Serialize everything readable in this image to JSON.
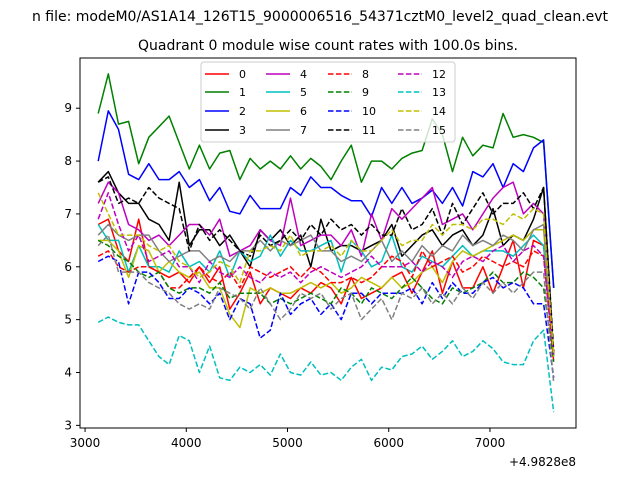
{
  "suptitle": "n file: modeM0/AS1A14_126T15_9000006516_54371cztM0_level2_quad_clean.evt",
  "chart_data": {
    "type": "line",
    "title": "Quadrant 0 module wise count rates with 100.0s bins.",
    "xlabel": "",
    "ylabel": "",
    "x_offset_label": "+4.9828e8",
    "xlim": [
      2950,
      7850
    ],
    "ylim": [
      2.95,
      9.95
    ],
    "x_ticks": [
      3000,
      4000,
      5000,
      6000,
      7000
    ],
    "x_tick_labels": [
      "3000",
      "4000",
      "5000",
      "6000",
      "7000"
    ],
    "y_ticks": [
      3,
      4,
      5,
      6,
      7,
      8,
      9
    ],
    "y_tick_labels": [
      "3",
      "4",
      "5",
      "6",
      "7",
      "8",
      "9"
    ],
    "grid": false,
    "legend_placement": "top-center",
    "legend_columns": 4,
    "x": [
      3130,
      3230,
      3330,
      3430,
      3530,
      3630,
      3730,
      3830,
      3930,
      4030,
      4130,
      4230,
      4330,
      4430,
      4530,
      4630,
      4730,
      4830,
      4930,
      5030,
      5130,
      5230,
      5330,
      5430,
      5530,
      5630,
      5730,
      5830,
      5930,
      6030,
      6130,
      6230,
      6330,
      6430,
      6530,
      6630,
      6730,
      6830,
      6930,
      7030,
      7130,
      7230,
      7330,
      7430,
      7530,
      7630
    ],
    "series": [
      {
        "name": "0",
        "color": "#ff0000",
        "dash": "solid",
        "values": [
          6.8,
          6.9,
          6.3,
          6.1,
          6.9,
          6.0,
          5.9,
          5.8,
          5.9,
          5.7,
          6.0,
          5.7,
          6.0,
          5.2,
          5.5,
          5.9,
          5.3,
          5.6,
          5.5,
          5.4,
          5.6,
          5.5,
          5.7,
          5.6,
          5.3,
          5.8,
          5.4,
          5.5,
          5.6,
          5.8,
          5.9,
          5.5,
          5.9,
          6.3,
          5.5,
          6.1,
          5.6,
          5.6,
          6.0,
          5.5,
          6.0,
          6.5,
          5.6,
          6.5,
          6.4,
          4.3
        ]
      },
      {
        "name": "1",
        "color": "#008000",
        "dash": "solid",
        "values": [
          8.9,
          9.65,
          8.7,
          8.75,
          7.95,
          8.45,
          8.65,
          8.85,
          8.35,
          7.85,
          8.3,
          7.85,
          8.15,
          8.2,
          7.65,
          8.05,
          7.85,
          8.0,
          7.85,
          8.1,
          7.85,
          8.05,
          7.9,
          7.65,
          8.0,
          8.3,
          7.6,
          8.0,
          8.0,
          7.85,
          8.05,
          8.15,
          8.2,
          8.8,
          8.5,
          7.8,
          8.45,
          8.1,
          8.3,
          8.25,
          8.9,
          8.45,
          8.5,
          8.45,
          8.35,
          5.6
        ]
      },
      {
        "name": "2",
        "color": "#0000ff",
        "dash": "solid",
        "values": [
          8.0,
          8.95,
          8.6,
          7.75,
          7.65,
          7.95,
          7.65,
          7.65,
          7.8,
          7.5,
          7.65,
          7.25,
          7.5,
          7.05,
          7.0,
          7.35,
          7.1,
          7.1,
          7.1,
          7.5,
          7.35,
          7.7,
          7.5,
          7.5,
          7.35,
          7.25,
          7.25,
          6.95,
          7.5,
          7.2,
          7.5,
          7.2,
          7.3,
          7.45,
          7.2,
          7.5,
          7.15,
          7.8,
          7.7,
          7.95,
          7.5,
          7.95,
          7.8,
          8.25,
          8.4,
          5.6
        ]
      },
      {
        "name": "3",
        "color": "#000000",
        "dash": "solid",
        "values": [
          7.6,
          7.8,
          7.4,
          7.2,
          7.2,
          6.9,
          6.8,
          6.5,
          7.6,
          6.4,
          6.7,
          6.7,
          6.4,
          6.6,
          6.3,
          6.0,
          6.7,
          6.5,
          6.7,
          6.4,
          6.6,
          6.0,
          6.9,
          6.3,
          6.4,
          6.4,
          6.3,
          6.4,
          6.5,
          6.8,
          6.2,
          6.4,
          6.6,
          6.7,
          6.4,
          6.6,
          6.7,
          6.4,
          6.6,
          7.1,
          6.4,
          6.6,
          6.5,
          6.9,
          7.5,
          4.3
        ]
      },
      {
        "name": "4",
        "color": "#bf00bf",
        "dash": "solid",
        "values": [
          7.2,
          7.6,
          7.4,
          6.8,
          6.7,
          6.5,
          6.6,
          6.4,
          6.6,
          6.8,
          6.8,
          6.6,
          6.9,
          6.2,
          6.3,
          6.4,
          6.7,
          6.5,
          6.4,
          7.3,
          6.4,
          6.5,
          6.6,
          6.6,
          6.4,
          6.7,
          6.2,
          7.0,
          6.5,
          7.1,
          6.9,
          7.1,
          7.3,
          7.5,
          6.8,
          6.9,
          7.0,
          6.7,
          7.0,
          7.3,
          7.5,
          7.6,
          7.0,
          7.2,
          7.0,
          4.3
        ]
      },
      {
        "name": "5",
        "color": "#00bfbf",
        "dash": "solid",
        "values": [
          6.8,
          6.5,
          6.5,
          5.9,
          6.4,
          6.0,
          6.0,
          5.9,
          6.3,
          6.0,
          6.1,
          5.9,
          6.3,
          5.8,
          6.3,
          6.1,
          6.2,
          6.6,
          6.2,
          6.5,
          6.3,
          6.3,
          6.4,
          6.5,
          5.9,
          6.5,
          6.3,
          6.0,
          6.1,
          6.6,
          6.0,
          5.9,
          6.2,
          6.1,
          6.0,
          6.2,
          6.4,
          6.2,
          6.3,
          6.3,
          6.3,
          6.2,
          6.4,
          6.6,
          6.4,
          4.3
        ]
      },
      {
        "name": "6",
        "color": "#bfbf00",
        "dash": "solid",
        "values": [
          6.5,
          6.5,
          6.3,
          5.8,
          6.4,
          6.3,
          5.9,
          6.1,
          5.9,
          5.8,
          5.9,
          5.6,
          5.6,
          5.1,
          4.85,
          5.6,
          5.5,
          5.6,
          5.5,
          5.5,
          5.6,
          5.7,
          5.6,
          5.7,
          5.5,
          5.6,
          5.8,
          5.7,
          5.6,
          5.8,
          5.6,
          5.7,
          5.9,
          6.0,
          5.7,
          6.1,
          6.3,
          6.2,
          6.3,
          6.4,
          6.5,
          6.6,
          6.5,
          6.7,
          6.7,
          4.3
        ]
      },
      {
        "name": "7",
        "color": "#808080",
        "dash": "solid",
        "values": [
          6.6,
          6.8,
          6.6,
          6.5,
          6.6,
          6.6,
          6.3,
          6.1,
          6.2,
          6.3,
          6.3,
          6.1,
          6.2,
          6.1,
          6.3,
          6.3,
          6.5,
          6.3,
          6.5,
          6.4,
          6.5,
          6.6,
          6.3,
          6.3,
          6.1,
          6.2,
          6.1,
          6.3,
          6.5,
          6.1,
          6.3,
          6.1,
          6.4,
          6.2,
          6.4,
          6.3,
          6.6,
          6.4,
          6.5,
          6.4,
          6.6,
          6.5,
          6.3,
          6.7,
          6.8,
          4.3
        ]
      },
      {
        "name": "8",
        "color": "#ff0000",
        "dash": "dashed",
        "values": [
          6.2,
          6.3,
          6.0,
          5.9,
          6.0,
          6.0,
          5.9,
          5.6,
          5.6,
          5.8,
          6.0,
          5.8,
          5.7,
          5.9,
          5.6,
          6.0,
          5.9,
          5.8,
          5.9,
          6.0,
          5.8,
          6.0,
          5.9,
          5.7,
          5.7,
          5.8,
          5.7,
          5.8,
          6.0,
          6.2,
          6.1,
          5.8,
          6.3,
          6.0,
          6.1,
          6.2,
          5.9,
          6.0,
          6.2,
          6.1,
          6.0,
          6.1,
          6.0,
          6.3,
          6.2,
          4.2
        ]
      },
      {
        "name": "9",
        "color": "#008000",
        "dash": "dashed",
        "values": [
          6.5,
          6.4,
          6.2,
          6.1,
          5.9,
          5.8,
          5.9,
          5.6,
          5.5,
          5.6,
          5.6,
          5.5,
          5.7,
          5.4,
          5.5,
          5.5,
          5.5,
          5.3,
          5.4,
          5.3,
          5.4,
          5.5,
          5.4,
          5.3,
          5.6,
          5.5,
          5.3,
          5.6,
          5.5,
          5.4,
          5.6,
          5.8,
          5.6,
          5.4,
          5.3,
          5.6,
          5.5,
          5.6,
          5.7,
          5.9,
          5.7,
          5.7,
          5.9,
          5.8,
          5.6,
          4.2
        ]
      },
      {
        "name": "10",
        "color": "#0000ff",
        "dash": "dashed",
        "values": [
          6.1,
          6.2,
          6.1,
          5.3,
          5.9,
          5.9,
          5.7,
          5.4,
          5.4,
          5.6,
          5.5,
          5.3,
          5.5,
          5.0,
          5.4,
          5.3,
          4.65,
          4.8,
          5.5,
          5.1,
          5.3,
          5.4,
          5.1,
          5.3,
          5.0,
          5.5,
          5.5,
          5.3,
          5.5,
          5.5,
          5.5,
          5.6,
          5.3,
          5.7,
          5.4,
          5.7,
          5.5,
          5.5,
          5.7,
          5.8,
          5.6,
          5.7,
          5.6,
          5.3,
          5.3,
          3.9
        ]
      },
      {
        "name": "11",
        "color": "#000000",
        "dash": "dashed",
        "values": [
          7.6,
          7.7,
          7.2,
          7.3,
          7.2,
          7.5,
          7.3,
          7.2,
          7.1,
          6.3,
          6.8,
          6.5,
          6.7,
          6.5,
          6.3,
          6.2,
          6.6,
          6.4,
          6.5,
          6.7,
          6.5,
          6.8,
          6.6,
          6.9,
          6.7,
          6.8,
          6.6,
          6.8,
          6.6,
          6.6,
          7.1,
          6.7,
          6.8,
          7.1,
          6.6,
          7.2,
          6.8,
          7.1,
          7.4,
          7.0,
          7.2,
          7.2,
          7.4,
          7.1,
          7.5,
          4.4
        ]
      },
      {
        "name": "12",
        "color": "#bf00bf",
        "dash": "dashed",
        "values": [
          6.9,
          7.4,
          6.8,
          6.3,
          6.6,
          6.1,
          6.2,
          6.3,
          6.0,
          6.0,
          5.7,
          6.1,
          5.9,
          5.8,
          6.0,
          5.8,
          5.7,
          5.9,
          5.8,
          5.9,
          5.7,
          5.9,
          6.0,
          5.9,
          5.8,
          5.9,
          6.0,
          6.2,
          6.0,
          6.0,
          6.0,
          6.1,
          5.9,
          6.1,
          6.0,
          5.8,
          6.1,
          6.2,
          6.1,
          6.3,
          6.4,
          6.1,
          6.3,
          6.4,
          6.2,
          4.3
        ]
      },
      {
        "name": "13",
        "color": "#00bfbf",
        "dash": "dashed",
        "values": [
          4.95,
          5.05,
          4.95,
          4.9,
          4.9,
          4.6,
          4.3,
          4.15,
          4.7,
          4.6,
          4.0,
          4.5,
          3.9,
          3.85,
          4.1,
          4.0,
          4.15,
          3.95,
          4.35,
          4.0,
          3.95,
          4.2,
          3.95,
          4.0,
          3.85,
          4.1,
          4.25,
          3.85,
          4.1,
          4.05,
          4.3,
          4.35,
          4.5,
          4.25,
          4.4,
          4.6,
          4.3,
          4.4,
          4.6,
          4.45,
          4.2,
          4.15,
          4.15,
          4.6,
          4.8,
          3.25
        ]
      },
      {
        "name": "14",
        "color": "#bfbf00",
        "dash": "dashed",
        "values": [
          7.4,
          7.0,
          6.6,
          6.6,
          6.6,
          6.4,
          6.3,
          6.4,
          6.1,
          6.0,
          5.8,
          5.9,
          6.1,
          6.0,
          5.7,
          6.3,
          6.3,
          6.4,
          6.3,
          6.6,
          6.2,
          6.3,
          6.3,
          6.4,
          6.2,
          6.5,
          6.3,
          6.3,
          6.5,
          6.7,
          6.4,
          6.5,
          6.5,
          6.8,
          6.6,
          6.8,
          6.8,
          6.7,
          6.9,
          6.9,
          6.8,
          7.0,
          6.9,
          7.1,
          7.0,
          4.3
        ]
      },
      {
        "name": "15",
        "color": "#808080",
        "dash": "dashed",
        "values": [
          6.4,
          6.6,
          5.9,
          5.9,
          5.9,
          5.7,
          5.6,
          5.5,
          5.3,
          5.2,
          5.3,
          5.2,
          5.6,
          5.5,
          5.4,
          5.2,
          5.6,
          5.3,
          5.0,
          5.2,
          5.5,
          5.4,
          5.5,
          5.2,
          5.4,
          5.5,
          5.0,
          5.2,
          5.4,
          5.0,
          5.5,
          5.4,
          5.6,
          5.3,
          5.5,
          5.3,
          5.6,
          5.4,
          5.7,
          5.5,
          5.7,
          5.5,
          5.7,
          5.9,
          5.9,
          3.8
        ]
      }
    ]
  }
}
